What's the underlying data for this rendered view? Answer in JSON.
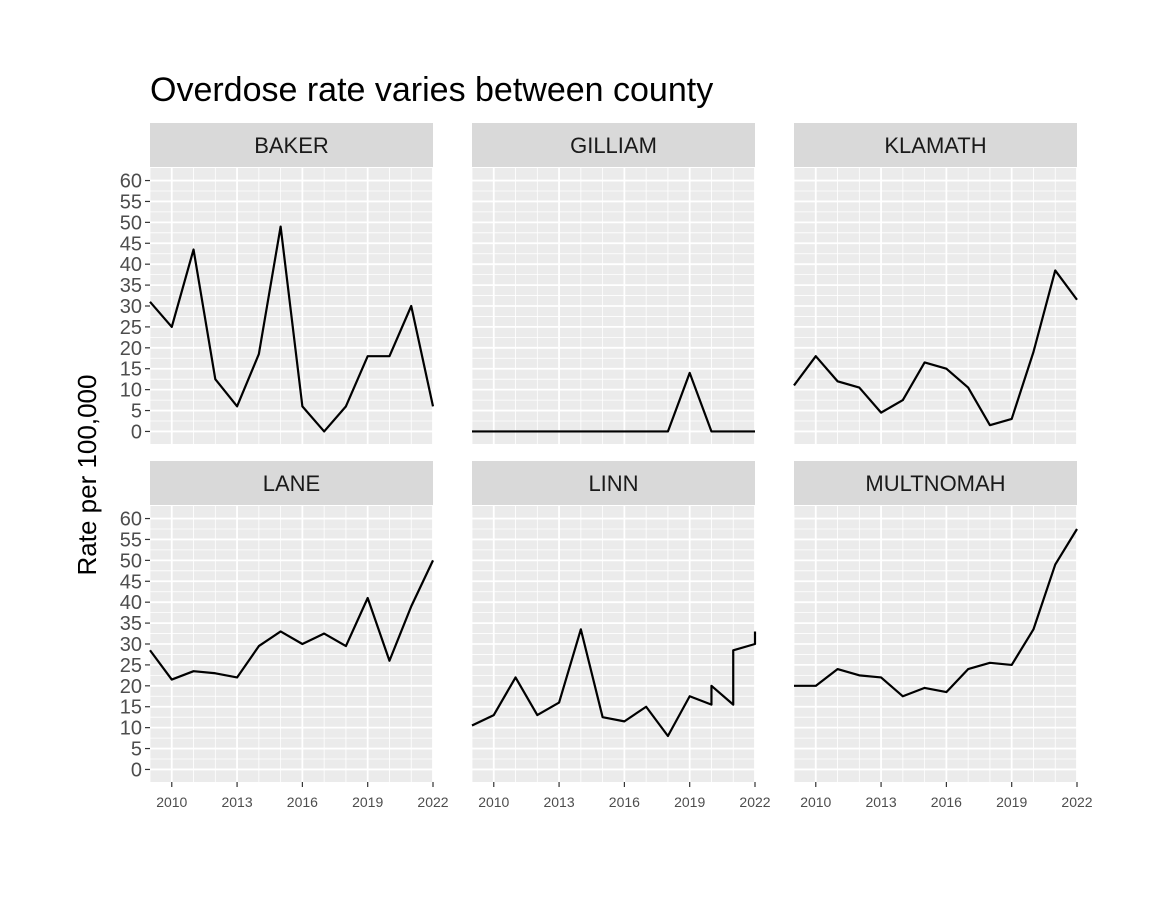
{
  "chart_data": {
    "type": "line",
    "title": "Overdose rate varies between county",
    "xlabel": "",
    "ylabel": "Rate per 100,000",
    "xlim": [
      2009,
      2022
    ],
    "ylim": [
      -3,
      63
    ],
    "x_ticks": [
      2010,
      2013,
      2016,
      2019,
      2022
    ],
    "y_ticks": [
      0,
      5,
      10,
      15,
      20,
      25,
      30,
      35,
      40,
      45,
      50,
      55,
      60
    ],
    "grid": true,
    "facets": [
      {
        "name": "BAKER",
        "x": [
          2009,
          2010,
          2011,
          2012,
          2013,
          2014,
          2015,
          2016,
          2017,
          2018,
          2019,
          2020,
          2021,
          2022
        ],
        "y": [
          31,
          25,
          43.5,
          12.5,
          6,
          18.5,
          49,
          6,
          0,
          6,
          18,
          18,
          30,
          6
        ]
      },
      {
        "name": "GILLIAM",
        "x": [
          2009,
          2010,
          2011,
          2012,
          2013,
          2014,
          2015,
          2016,
          2017,
          2018,
          2019,
          2020,
          2021,
          2022
        ],
        "y": [
          0,
          0,
          0,
          0,
          0,
          0,
          0,
          0,
          0,
          0,
          14,
          0,
          0,
          0
        ]
      },
      {
        "name": "KLAMATH",
        "x": [
          2009,
          2010,
          2011,
          2012,
          2013,
          2014,
          2015,
          2016,
          2017,
          2018,
          2019,
          2020,
          2021,
          2022
        ],
        "y": [
          11,
          18,
          12,
          10.5,
          4.5,
          7.5,
          16.5,
          15,
          10.5,
          1.5,
          3,
          19,
          38.5,
          31.5
        ]
      },
      {
        "name": "LANE",
        "x": [
          2009,
          2010,
          2011,
          2012,
          2013,
          2014,
          2015,
          2016,
          2017,
          2018,
          2019,
          2020,
          2021,
          2022
        ],
        "y": [
          28.5,
          21.5,
          23.5,
          23,
          22,
          29.5,
          33,
          30,
          32.5,
          29.5,
          41,
          26,
          39,
          50
        ]
      },
      {
        "name": "LINN",
        "x": [
          2009,
          2010,
          2011,
          2012,
          2013,
          2014,
          2015,
          2016,
          2017,
          2018,
          2019,
          2020,
          2020,
          2021,
          2021,
          2022,
          2022
        ],
        "y": [
          10.5,
          13,
          22,
          13,
          16,
          33.5,
          12.5,
          11.5,
          15,
          8,
          17.5,
          15.5,
          20,
          15.5,
          28.5,
          30,
          33
        ]
      },
      {
        "name": "MULTNOMAH",
        "x": [
          2009,
          2010,
          2011,
          2012,
          2013,
          2014,
          2015,
          2016,
          2017,
          2018,
          2019,
          2020,
          2021,
          2022
        ],
        "y": [
          20,
          20,
          24,
          22.5,
          22,
          17.5,
          19.5,
          18.5,
          24,
          25.5,
          25,
          33.5,
          49,
          57.5
        ]
      }
    ],
    "colors": {
      "panel_bg": "#ebebeb",
      "grid": "#ffffff",
      "strip_bg": "#d9d9d9",
      "line": "#000000"
    }
  }
}
